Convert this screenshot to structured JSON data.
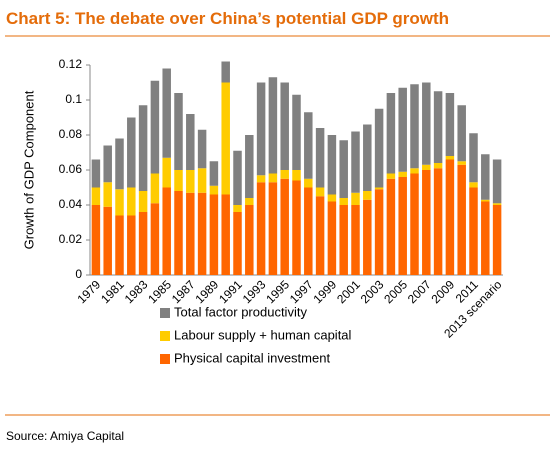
{
  "chart_data": {
    "type": "stacked_bar",
    "title": "Chart 5: The debate over China’s potential GDP growth",
    "y_label": "Growth of GDP Component",
    "source": "Source: Amiya Capital",
    "categories": [
      "1979",
      null,
      "1981",
      null,
      "1983",
      null,
      "1985",
      null,
      "1987",
      null,
      "1989",
      null,
      "1991",
      null,
      "1993",
      null,
      "1995",
      null,
      "1997",
      null,
      "1999",
      null,
      "2001",
      null,
      "2003",
      null,
      "2005",
      null,
      "2007",
      null,
      "2009",
      null,
      "2011",
      null,
      "2013 scenario"
    ],
    "series": [
      {
        "name": "Physical capital investment",
        "color": "#ff6600",
        "values": [
          0.04,
          0.039,
          0.034,
          0.034,
          0.036,
          0.041,
          0.05,
          0.048,
          0.047,
          0.047,
          0.046,
          0.046,
          0.036,
          0.04,
          0.053,
          0.053,
          0.055,
          0.054,
          0.05,
          0.045,
          0.042,
          0.04,
          0.04,
          0.043,
          0.049,
          0.055,
          0.056,
          0.058,
          0.06,
          0.061,
          0.066,
          0.063,
          0.05,
          0.042,
          0.04
        ]
      },
      {
        "name": "Labour supply + human capital",
        "color": "#ffcc00",
        "values": [
          0.01,
          0.014,
          0.015,
          0.016,
          0.012,
          0.017,
          0.017,
          0.012,
          0.013,
          0.014,
          0.005,
          0.064,
          0.004,
          0.004,
          0.004,
          0.005,
          0.005,
          0.006,
          0.005,
          0.005,
          0.004,
          0.004,
          0.007,
          0.005,
          0.001,
          0.003,
          0.003,
          0.003,
          0.003,
          0.003,
          0.002,
          0.002,
          0.003,
          0.001,
          0.001
        ]
      },
      {
        "name": "Total factor productivity",
        "color": "#808080",
        "values": [
          0.016,
          0.021,
          0.029,
          0.04,
          0.049,
          0.053,
          0.051,
          0.044,
          0.032,
          0.022,
          0.014,
          0.012,
          0.031,
          0.036,
          0.053,
          0.055,
          0.05,
          0.043,
          0.038,
          0.034,
          0.034,
          0.033,
          0.035,
          0.038,
          0.045,
          0.046,
          0.048,
          0.048,
          0.047,
          0.041,
          0.036,
          0.032,
          0.028,
          0.026,
          0.025
        ]
      }
    ],
    "ylim": [
      0,
      0.12
    ],
    "yticks": [
      0,
      0.02,
      0.04,
      0.06,
      0.08,
      0.1,
      0.12
    ],
    "legend": "bottom"
  }
}
